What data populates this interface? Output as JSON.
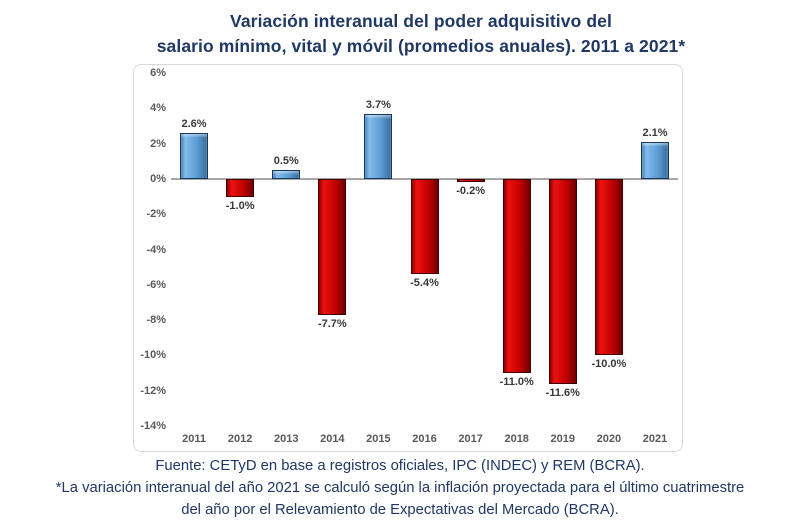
{
  "title": {
    "line1": "Variación interanual del poder adquisitivo del",
    "line2": "salario mínimo, vital y móvil (promedios anuales). 2011 a 2021*"
  },
  "chart_data": {
    "type": "bar",
    "title": "Variación interanual del poder adquisitivo del salario mínimo, vital y móvil (promedios anuales). 2011 a 2021*",
    "categories": [
      "2011",
      "2012",
      "2013",
      "2014",
      "2015",
      "2016",
      "2017",
      "2018",
      "2019",
      "2020",
      "2021"
    ],
    "values": [
      2.6,
      -1.0,
      0.5,
      -7.7,
      3.7,
      -5.4,
      -0.2,
      -11.0,
      -11.6,
      -10.0,
      2.1
    ],
    "data_labels": [
      "2.6%",
      "-1.0%",
      "0.5%",
      "-7.7%",
      "3.7%",
      "-5.4%",
      "-0.2%",
      "-11.0%",
      "-11.6%",
      "-10.0%",
      "2.1%"
    ],
    "xlabel": "",
    "ylabel": "",
    "ylim": [
      -14,
      6
    ],
    "ytick_step": 2,
    "ytick_labels": [
      "6%",
      "4%",
      "2%",
      "0%",
      "-2%",
      "-4%",
      "-6%",
      "-8%",
      "-10%",
      "-12%",
      "-14%"
    ],
    "grid": false,
    "legend": "none",
    "positive_color": "#5B9BD5",
    "negative_color": "#C00000"
  },
  "colors": {
    "title_text": "#1F3864",
    "footer_text": "#1F3864",
    "axis_text": "#595959",
    "data_label_text": "#383838",
    "zero_line": "#A6A6A6",
    "frame_border": "#D9D9D9",
    "bar_positive": "#5B9BD5",
    "bar_negative": "#C00000"
  },
  "footer": {
    "source": "Fuente: CETyD en base a registros oficiales, IPC (INDEC) y REM (BCRA).",
    "note_line1": "*La variación interanual del año 2021 se calculó según la inflación proyectada para el último cuatrimestre",
    "note_line2": "del año por el Relevamiento de Expectativas del Mercado (BCRA)."
  }
}
